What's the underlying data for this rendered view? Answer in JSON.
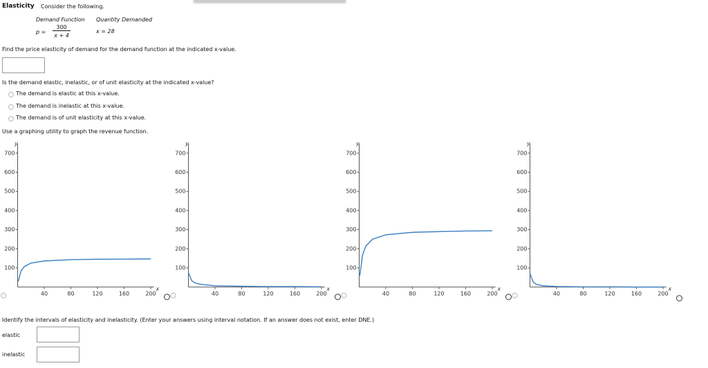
{
  "header": {
    "title": "Elasticity",
    "instruction": "Consider the following."
  },
  "problem": {
    "demand_label": "Demand Function",
    "quantity_label": "Quantity Demanded",
    "p_label": "p =",
    "numerator": "300",
    "denominator": "x + 4",
    "quantity": "x = 28"
  },
  "question1": {
    "text": "Find the price elasticity of demand for the demand function at the indicated x-value."
  },
  "question2": {
    "text": "Is the demand elastic, inelastic, or of unit elasticity at the indicated x-value?",
    "options": [
      "The demand is elastic at this x-value.",
      "The demand is inelastic at this x-value.",
      "The demand is of unit elasticity at this x-value."
    ]
  },
  "question3": {
    "text": "Use a graphing utility to graph the revenue function."
  },
  "graphs": [
    {
      "xlabel": "x",
      "ylabel": "y",
      "xlim": [
        0,
        205
      ],
      "ylim": [
        0,
        750
      ],
      "xticks": [
        40,
        80,
        120,
        160,
        200
      ],
      "yticks": [
        100,
        200,
        300,
        400,
        500,
        600,
        700
      ],
      "color": "#3a7fc1",
      "x": [
        1,
        5,
        10,
        20,
        40,
        80,
        120,
        160,
        200
      ],
      "y": [
        30,
        83,
        107,
        125,
        136,
        143,
        145,
        146,
        147
      ]
    },
    {
      "xlabel": "x",
      "ylabel": "y",
      "xlim": [
        0,
        205
      ],
      "ylim": [
        0,
        750
      ],
      "xticks": [
        40,
        80,
        120,
        160,
        200
      ],
      "yticks": [
        100,
        200,
        300,
        400,
        500,
        600,
        700
      ],
      "color": "#3a7fc1",
      "x": [
        0,
        5,
        10,
        20,
        40,
        80,
        120,
        160,
        200
      ],
      "y": [
        75,
        33,
        21,
        13,
        7,
        4,
        2,
        2,
        1
      ]
    },
    {
      "xlabel": "x",
      "ylabel": "y",
      "xlim": [
        0,
        205
      ],
      "ylim": [
        0,
        750
      ],
      "xticks": [
        40,
        80,
        120,
        160,
        200
      ],
      "yticks": [
        100,
        200,
        300,
        400,
        500,
        600,
        700
      ],
      "color": "#3a7fc1",
      "x": [
        1,
        5,
        10,
        20,
        40,
        80,
        120,
        160,
        200
      ],
      "y": [
        60,
        167,
        214,
        250,
        273,
        286,
        290,
        293,
        294
      ]
    },
    {
      "xlabel": "x",
      "ylabel": "y",
      "xlim": [
        0,
        205
      ],
      "ylim": [
        0,
        750
      ],
      "xticks": [
        40,
        80,
        120,
        160,
        200
      ],
      "yticks": [
        100,
        200,
        300,
        400,
        500,
        600,
        700
      ],
      "color": "#3a7fc1",
      "x": [
        0,
        5,
        10,
        20,
        40,
        80,
        120,
        160,
        200
      ],
      "y": [
        70,
        25,
        13,
        6,
        3,
        1,
        1,
        0,
        0
      ]
    }
  ],
  "question4": {
    "text": "Identify the intervals of elasticity and inelasticity. (Enter your answers using interval notation. If an answer does not exist, enter DNE.)",
    "elastic_label": "elastic",
    "inelastic_label": "inelastic"
  }
}
